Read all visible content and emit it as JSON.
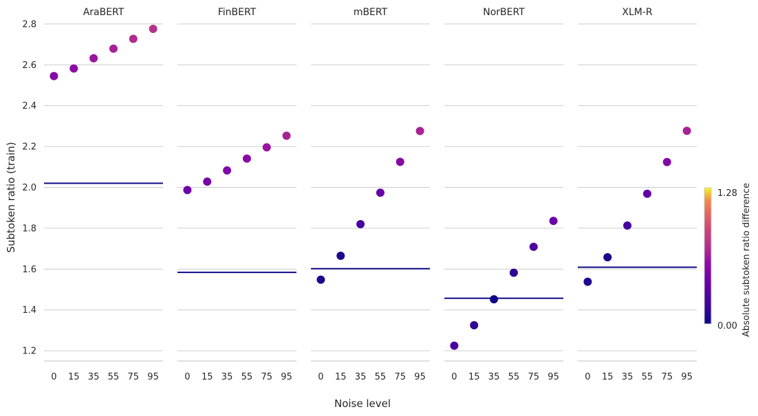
{
  "chart_data": {
    "type": "scatter",
    "xlabel": "Noise level",
    "ylabel": "Subtoken ratio (train)",
    "ylim": [
      1.15,
      2.85
    ],
    "yticks": [
      "1.2",
      "1.4",
      "1.6",
      "1.8",
      "2.0",
      "2.2",
      "2.4",
      "2.6",
      "2.8"
    ],
    "categories": [
      "0",
      "15",
      "35",
      "55",
      "75",
      "95"
    ],
    "grid": "horizontal",
    "colorbar": {
      "label": "Absolute subtoken ratio difference",
      "min_label": "0.00",
      "max_label": "1.28",
      "min": 0,
      "max": 1.28,
      "colormap": "plasma"
    },
    "panels": [
      {
        "title": "AraBERT",
        "baseline": 2.02,
        "values": [
          2.545,
          2.582,
          2.632,
          2.679,
          2.727,
          2.776
        ]
      },
      {
        "title": "FinBERT",
        "baseline": 1.584,
        "values": [
          1.987,
          2.028,
          2.083,
          2.141,
          2.196,
          2.253
        ]
      },
      {
        "title": "mBERT",
        "baseline": 1.602,
        "values": [
          1.548,
          1.665,
          1.82,
          1.974,
          2.125,
          2.276
        ]
      },
      {
        "title": "NorBERT",
        "baseline": 1.457,
        "values": [
          1.225,
          1.325,
          1.452,
          1.582,
          1.709,
          1.836
        ]
      },
      {
        "title": "XLM-R",
        "baseline": 1.609,
        "values": [
          1.538,
          1.658,
          1.813,
          1.969,
          2.124,
          2.277
        ]
      }
    ]
  }
}
